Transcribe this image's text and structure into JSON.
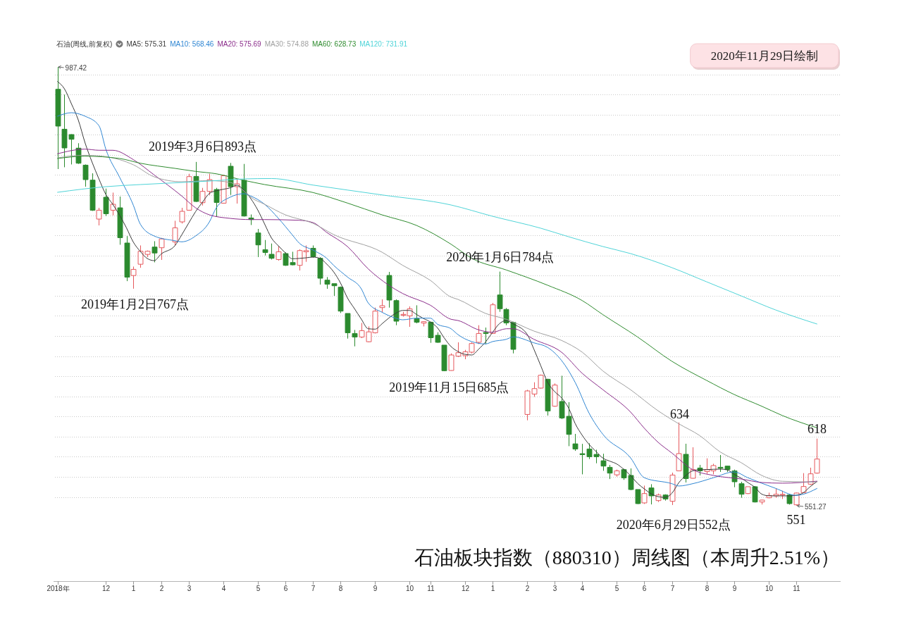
{
  "chart_data": {
    "type": "candlestick",
    "title": "石油板块指数（880310）周线图（本周升2.51%）",
    "legend_title": "石油(周线,前复权)",
    "legend": "top left",
    "grid": "y",
    "x": [
      "2018-10-19",
      "2018-10-26",
      "2018-11-02",
      "2018-11-09",
      "2018-11-16",
      "2018-11-23",
      "2018-11-30",
      "2018-12-07",
      "2018-12-14",
      "2018-12-21",
      "2018-12-28",
      "2019-01-04",
      "2019-01-11",
      "2019-01-18",
      "2019-01-25",
      "2019-02-01",
      "2019-02-15",
      "2019-02-22",
      "2019-03-01",
      "2019-03-08",
      "2019-03-15",
      "2019-03-22",
      "2019-03-29",
      "2019-04-05",
      "2019-04-12",
      "2019-04-19",
      "2019-04-26",
      "2019-05-03",
      "2019-05-10",
      "2019-05-17",
      "2019-05-24",
      "2019-05-31",
      "2019-06-07",
      "2019-06-14",
      "2019-06-21",
      "2019-06-28",
      "2019-07-05",
      "2019-07-12",
      "2019-07-19",
      "2019-07-26",
      "2019-08-02",
      "2019-08-09",
      "2019-08-16",
      "2019-08-23",
      "2019-08-30",
      "2019-09-06",
      "2019-09-13",
      "2019-09-20",
      "2019-09-27",
      "2019-10-04",
      "2019-10-11",
      "2019-10-18",
      "2019-10-25",
      "2019-11-01",
      "2019-11-08",
      "2019-11-15",
      "2019-11-22",
      "2019-11-29",
      "2019-12-06",
      "2019-12-13",
      "2019-12-20",
      "2019-12-27",
      "2020-01-03",
      "2020-01-10",
      "2020-01-17",
      "2020-01-24",
      "2020-02-07",
      "2020-02-14",
      "2020-02-21",
      "2020-02-28",
      "2020-03-06",
      "2020-03-13",
      "2020-03-20",
      "2020-03-27",
      "2020-04-03",
      "2020-04-10",
      "2020-04-17",
      "2020-04-24",
      "2020-05-01",
      "2020-05-08",
      "2020-05-15",
      "2020-05-22",
      "2020-05-29",
      "2020-06-05",
      "2020-06-12",
      "2020-06-19",
      "2020-06-26",
      "2020-07-03",
      "2020-07-10",
      "2020-07-17",
      "2020-07-24",
      "2020-07-31",
      "2020-08-07",
      "2020-08-14",
      "2020-08-21",
      "2020-08-28",
      "2020-09-04",
      "2020-09-11",
      "2020-09-18",
      "2020-09-25",
      "2020-10-02",
      "2020-10-09",
      "2020-10-16",
      "2020-10-23",
      "2020-10-30",
      "2020-11-06",
      "2020-11-13",
      "2020-11-20",
      "2020-11-27"
    ],
    "xlim": [
      "2018-10-15",
      "2020-12-21"
    ],
    "xticks": [
      {
        "value": "2018-10-19",
        "label": "2018年"
      },
      {
        "value": "2018-12-07",
        "label": "12"
      },
      {
        "value": "2019-01-04",
        "label": "1"
      },
      {
        "value": "2019-02-01",
        "label": "2"
      },
      {
        "value": "2019-03-01",
        "label": "3"
      },
      {
        "value": "2019-04-05",
        "label": "4"
      },
      {
        "value": "2019-05-10",
        "label": "5"
      },
      {
        "value": "2019-06-07",
        "label": "6"
      },
      {
        "value": "2019-07-05",
        "label": "7"
      },
      {
        "value": "2019-08-02",
        "label": "8"
      },
      {
        "value": "2019-09-06",
        "label": "9"
      },
      {
        "value": "2019-10-11",
        "label": "10"
      },
      {
        "value": "2019-11-01",
        "label": "11"
      },
      {
        "value": "2019-12-06",
        "label": "12"
      },
      {
        "value": "2020-01-03",
        "label": "1"
      },
      {
        "value": "2020-02-07",
        "label": "2"
      },
      {
        "value": "2020-03-06",
        "label": "3"
      },
      {
        "value": "2020-04-03",
        "label": "4"
      },
      {
        "value": "2020-05-08",
        "label": "5"
      },
      {
        "value": "2020-06-05",
        "label": "6"
      },
      {
        "value": "2020-07-03",
        "label": "7"
      },
      {
        "value": "2020-08-07",
        "label": "8"
      },
      {
        "value": "2020-09-04",
        "label": "9"
      },
      {
        "value": "2020-10-09",
        "label": "10"
      },
      {
        "value": "2020-11-06",
        "label": "11"
      }
    ],
    "ohlc": [
      [
        965.2,
        987.42,
        885.9,
        928.6
      ],
      [
        925.5,
        959.9,
        887.7,
        906.9
      ],
      [
        920.2,
        920.5,
        890.5,
        915.5
      ],
      [
        906.7,
        911.6,
        891.0,
        891.7
      ],
      [
        889.8,
        890.5,
        868.4,
        875.4
      ],
      [
        874.9,
        881.7,
        844.3,
        845.0
      ],
      [
        836.2,
        847.4,
        829.9,
        845.0
      ],
      [
        857.9,
        866.5,
        839.2,
        841.5
      ],
      [
        845.0,
        862.5,
        839.9,
        850.9
      ],
      [
        847.4,
        858.6,
        810.7,
        817.7
      ],
      [
        812.4,
        819.3,
        774.5,
        778.5
      ],
      [
        780.1,
        789.0,
        767,
        786.2
      ],
      [
        791.3,
        810.0,
        787.8,
        804.2
      ],
      [
        801.1,
        805.0,
        798.4,
        804.2
      ],
      [
        808.4,
        814.2,
        793.2,
        802.5
      ],
      [
        807.7,
        817.5,
        795.6,
        816.5
      ],
      [
        813.5,
        834.5,
        810.0,
        827.5
      ],
      [
        833.4,
        847.4,
        831.8,
        843.9
      ],
      [
        845.0,
        881.2,
        844.6,
        878.4
      ],
      [
        878.6,
        893,
        853.2,
        853.7
      ],
      [
        852.5,
        867.2,
        849.7,
        863.7
      ],
      [
        863.7,
        881.2,
        860.2,
        875.4
      ],
      [
        865.6,
        867.2,
        838.5,
        852.7
      ],
      [
        852.0,
        880.0,
        851.6,
        879.3
      ],
      [
        888.7,
        892,
        860.2,
        868.4
      ],
      [
        868.4,
        875.4,
        851.6,
        871.2
      ],
      [
        874.7,
        891,
        838.7,
        839.2
      ],
      [
        837.3,
        840.8,
        830.3,
        835.7
      ],
      [
        822.4,
        826.4,
        798.4,
        810.5
      ],
      [
        805.8,
        815.4,
        800.0,
        803.0
      ],
      [
        801.2,
        811.9,
        796.0,
        797.2
      ],
      [
        796.0,
        809.3,
        794.9,
        803.7
      ],
      [
        801.9,
        803.1,
        789.7,
        790.2
      ],
      [
        793.0,
        803.7,
        790.2,
        790.7
      ],
      [
        790.2,
        806.1,
        785.1,
        804.9
      ],
      [
        803.7,
        810.0,
        793.7,
        804.8
      ],
      [
        807.2,
        810.0,
        797.9,
        798.8
      ],
      [
        797.2,
        798.4,
        771.1,
        777.4
      ],
      [
        775.5,
        778.6,
        766.9,
        771.5
      ],
      [
        772.0,
        772.0,
        759.9,
        769.9
      ],
      [
        768.5,
        769.2,
        742.8,
        744.7
      ],
      [
        742.4,
        742.4,
        717.4,
        723.2
      ],
      [
        722.5,
        726.0,
        709.7,
        719.0
      ],
      [
        719.0,
        733.0,
        717.9,
        725.3
      ],
      [
        714.3,
        729.5,
        713.7,
        724.1
      ],
      [
        723.2,
        748.2,
        722.5,
        744.7
      ],
      [
        748.2,
        756.4,
        743.5,
        750.1
      ],
      [
        780.2,
        783.7,
        748.2,
        755.7
      ],
      [
        755.2,
        756.4,
        730.7,
        734.7
      ],
      [
        740.5,
        744.0,
        739.3,
        741.5
      ],
      [
        740.0,
        749.4,
        729.1,
        747.0
      ],
      [
        737.2,
        750.5,
        732.6,
        733.7
      ],
      [
        732.8,
        734.7,
        729.5,
        734.2
      ],
      [
        733.7,
        734.2,
        713.2,
        718.3
      ],
      [
        720.7,
        723.7,
        713.2,
        713.7
      ],
      [
        710.9,
        710.9,
        685,
        685.5
      ],
      [
        685.7,
        702.7,
        685.5,
        701.1
      ],
      [
        699.9,
        713.7,
        699.2,
        703.4
      ],
      [
        700.4,
        706.2,
        696.9,
        704.3
      ],
      [
        703.9,
        713.7,
        702.7,
        712.5
      ],
      [
        713.7,
        730.7,
        712.0,
        722.5
      ],
      [
        723.5,
        728.4,
        712.0,
        722.5
      ],
      [
        722.5,
        752.9,
        722.1,
        751.0
      ],
      [
        760.8,
        784,
        744.0,
        747.1
      ],
      [
        746.4,
        747.8,
        730.7,
        733.0
      ],
      [
        733.5,
        734.2,
        702.7,
        706.7
      ],
      [
        642.0,
        666.5,
        636.2,
        665.4
      ],
      [
        662.3,
        674.0,
        659.5,
        667.7
      ],
      [
        668.2,
        681.7,
        667.7,
        681.0
      ],
      [
        677.0,
        677.5,
        640.9,
        645.5
      ],
      [
        650.2,
        672.8,
        649.7,
        671.2
      ],
      [
        654.9,
        680.5,
        637.4,
        638.5
      ],
      [
        640.2,
        654.2,
        610.5,
        622.2
      ],
      [
        612.8,
        622.7,
        605.8,
        607.7
      ],
      [
        603.0,
        612.8,
        582.5,
        602.1
      ],
      [
        607.7,
        613.3,
        597.7,
        600.0
      ],
      [
        602.3,
        607.0,
        593.5,
        600.0
      ],
      [
        596.0,
        603.0,
        586.0,
        590.7
      ],
      [
        589.5,
        591.8,
        577.8,
        583.7
      ],
      [
        582.0,
        587.2,
        580.2,
        586.0
      ],
      [
        587.2,
        588.0,
        577.0,
        579.0
      ],
      [
        581.4,
        588.4,
        566.7,
        567.4
      ],
      [
        567.4,
        567.4,
        552.9,
        553.4
      ],
      [
        554.1,
        571.3,
        553.1,
        563.4
      ],
      [
        569.0,
        572.7,
        552.6,
        561.1
      ],
      [
        556.4,
        563.4,
        555.0,
        562.0
      ],
      [
        562.0,
        562.7,
        556.4,
        558.0
      ],
      [
        555.7,
        584.2,
        552,
        581.8
      ],
      [
        586.0,
        634,
        585.6,
        603.1
      ],
      [
        602.4,
        612.9,
        574.4,
        578.3
      ],
      [
        578.6,
        609.4,
        578.3,
        587.2
      ],
      [
        588.8,
        591.9,
        581.4,
        586.0
      ],
      [
        585.3,
        598.4,
        583.0,
        587.2
      ],
      [
        586.0,
        593.0,
        582.5,
        591.2
      ],
      [
        589.5,
        601.7,
        584.9,
        588.6
      ],
      [
        590.7,
        590.9,
        584.9,
        587.2
      ],
      [
        586.0,
        587.2,
        569.7,
        575.1
      ],
      [
        573.2,
        575.1,
        559.2,
        562.7
      ],
      [
        563.4,
        570.2,
        562.9,
        570.2
      ],
      [
        570.2,
        570.9,
        554.5,
        555.0
      ],
      [
        555.0,
        557.3,
        552.5,
        556.9
      ],
      [
        559.2,
        564.3,
        558.7,
        561.5
      ],
      [
        561.1,
        568.5,
        559.2,
        562.7
      ],
      [
        562.0,
        566.2,
        558.0,
        562.6
      ],
      [
        562.0,
        562.7,
        552.4,
        553.4
      ],
      [
        552.2,
        564.3,
        551.27,
        563.9
      ],
      [
        564.3,
        583.7,
        563.9,
        570.4
      ],
      [
        572.7,
        589.1,
        572.0,
        583.0
      ],
      [
        583.7,
        618,
        583.2,
        597.7
      ]
    ],
    "colors": [
      "#2b8a2e",
      "#2b8a2e",
      "#2b8a2e",
      "#2b8a2e",
      "#2b8a2e",
      "#2b8a2e",
      "#e5585c",
      "#2b8a2e",
      "#e5585c",
      "#2b8a2e",
      "#2b8a2e",
      "#e5585c",
      "#e5585c",
      "#e5585c",
      "#2b8a2e",
      "#e5585c",
      "#e5585c",
      "#e5585c",
      "#e5585c",
      "#2b8a2e",
      "#e5585c",
      "#e5585c",
      "#2b8a2e",
      "#e5585c",
      "#2b8a2e",
      "#e5585c",
      "#2b8a2e",
      "#2b8a2e",
      "#2b8a2e",
      "#2b8a2e",
      "#2b8a2e",
      "#e5585c",
      "#2b8a2e",
      "#2b8a2e",
      "#e5585c",
      "#e5585c",
      "#2b8a2e",
      "#2b8a2e",
      "#2b8a2e",
      "#2b8a2e",
      "#2b8a2e",
      "#2b8a2e",
      "#2b8a2e",
      "#e5585c",
      "#e5585c",
      "#e5585c",
      "#e5585c",
      "#2b8a2e",
      "#2b8a2e",
      "#e5585c",
      "#e5585c",
      "#2b8a2e",
      "#e5585c",
      "#2b8a2e",
      "#2b8a2e",
      "#2b8a2e",
      "#e5585c",
      "#e5585c",
      "#e5585c",
      "#e5585c",
      "#e5585c",
      "#2b8a2e",
      "#e5585c",
      "#2b8a2e",
      "#2b8a2e",
      "#2b8a2e",
      "#e5585c",
      "#e5585c",
      "#e5585c",
      "#2b8a2e",
      "#e5585c",
      "#2b8a2e",
      "#2b8a2e",
      "#2b8a2e",
      "#2b8a2e",
      "#2b8a2e",
      "#2b8a2e",
      "#2b8a2e",
      "#2b8a2e",
      "#e5585c",
      "#2b8a2e",
      "#2b8a2e",
      "#2b8a2e",
      "#e5585c",
      "#2b8a2e",
      "#e5585c",
      "#2b8a2e",
      "#e5585c",
      "#e5585c",
      "#2b8a2e",
      "#e5585c",
      "#2b8a2e",
      "#e5585c",
      "#e5585c",
      "#2b8a2e",
      "#2b8a2e",
      "#2b8a2e",
      "#2b8a2e",
      "#e5585c",
      "#2b8a2e",
      "#e5585c",
      "#e5585c",
      "#e5585c",
      "#e5585c",
      "#2b8a2e",
      "#e5585c",
      "#e5585c",
      "#e5585c",
      "#e5585c"
    ],
    "series": [
      {
        "name": "MA5: 575.31",
        "type": "line",
        "color": "#3a3a3a",
        "values": [
          972.9,
          965.7,
          951.0,
          934.9,
          911.8,
          892.9,
          876.1,
          860.7,
          850.9,
          840.0,
          827.3,
          813.1,
          804.0,
          797.0,
          794.9,
          801.4,
          809.7,
          820.6,
          832.2,
          843.6,
          853.0,
          861.7,
          864.3,
          865.8,
          867.2,
          869.8,
          864.9,
          856.5,
          845.3,
          831.3,
          817.3,
          809.6,
          802.6,
          796.8,
          797.1,
          797.7,
          798.4,
          797.2,
          791.4,
          783.7,
          772.5,
          757.8,
          747.3,
          736.8,
          727.2,
          726.8,
          732.1,
          737.9,
          742.6,
          745.4,
          745.4,
          741.4,
          737.4,
          734.0,
          728.4,
          718.2,
          709.5,
          704.6,
          701.8,
          701.1,
          706.9,
          714.1,
          723.5,
          732.2,
          735.3,
          732.0,
          721.9,
          706.9,
          690.4,
          673.8,
          664.8,
          658.6,
          648.8,
          632.7,
          621.3,
          612.2,
          605.2,
          598.6,
          595.6,
          592.8,
          587.6,
          581.3,
          573.6,
          568.0,
          563.1,
          560.3,
          559.6,
          563.8,
          574.3,
          581.3,
          586.0,
          587.0,
          587.2,
          587.5,
          587.7,
          587.0,
          582.5,
          578.8,
          574.3,
          569.7,
          562.8,
          561.2,
          561.1,
          561.1,
          561.1,
          561.7,
          564.1,
          570.1,
          575.31
        ]
      },
      {
        "name": "MA10: 568.46",
        "type": "line",
        "color": "#2f86d3",
        "x": [
          "2018-10-19",
          "2018-11-02",
          "2018-11-16",
          "2018-11-30",
          "2018-12-07",
          "2018-12-21",
          "2019-01-04",
          "2019-01-11",
          "2019-01-25",
          "2019-02-15",
          "2019-02-22",
          "2019-03-08",
          "2019-03-22",
          "2019-03-29",
          "2019-04-12",
          "2019-04-26",
          "2019-05-03",
          "2019-05-17",
          "2019-05-31",
          "2019-06-14",
          "2019-06-21",
          "2019-07-05",
          "2019-07-19",
          "2019-07-26",
          "2019-08-09",
          "2019-08-23",
          "2019-08-30",
          "2019-09-13",
          "2019-09-27",
          "2019-10-04",
          "2019-10-18",
          "2019-11-01",
          "2019-11-08",
          "2019-11-22",
          "2019-11-29",
          "2019-12-13",
          "2019-12-27",
          "2020-01-03",
          "2020-01-17",
          "2020-01-24",
          "2020-02-14",
          "2020-02-28",
          "2020-03-13",
          "2020-03-27",
          "2020-04-10",
          "2020-04-24",
          "2020-05-22",
          "2020-06-05",
          "2020-07-03",
          "2020-07-10",
          "2020-07-24",
          "2020-08-14",
          "2020-09-04",
          "2020-09-18",
          "2020-10-16",
          "2020-11-06",
          "2020-11-13",
          "2020-11-27"
        ],
        "values": [
          938.4,
          941.9,
          938.4,
          929.1,
          905.7,
          877.7,
          849.7,
          831.1,
          819.4,
          814.7,
          813.6,
          819.4,
          833.4,
          847.4,
          857.9,
          861.4,
          859.1,
          850.9,
          836.9,
          820.6,
          812.4,
          805.4,
          797.2,
          790.2,
          778.6,
          766.9,
          752.9,
          743.6,
          737.7,
          736.1,
          737.7,
          737.7,
          731.9,
          727.2,
          721.4,
          714.4,
          712.1,
          714.4,
          716.7,
          719.1,
          713.2,
          708.6,
          695.7,
          673.6,
          643.2,
          622.2,
          598.9,
          579.1,
          573.2,
          570.9,
          573.2,
          579.1,
          584.9,
          579.1,
          568.6,
          561.6,
          562.7,
          568.46
        ]
      },
      {
        "name": "MA20: 575.69",
        "type": "line",
        "color": "#8b2d8b",
        "x": [
          "2018-10-19",
          "2018-11-16",
          "2018-11-30",
          "2018-12-14",
          "2019-01-04",
          "2019-01-25",
          "2019-02-22",
          "2019-03-08",
          "2019-03-22",
          "2019-04-12",
          "2019-05-03",
          "2019-05-17",
          "2019-06-21",
          "2019-07-05",
          "2019-07-19",
          "2019-08-09",
          "2019-08-30",
          "2019-09-20",
          "2019-10-04",
          "2019-11-01",
          "2019-11-22",
          "2019-11-29",
          "2019-12-20",
          "2020-01-03",
          "2020-01-17",
          "2020-01-24",
          "2020-02-14",
          "2020-03-13",
          "2020-04-03",
          "2020-04-24",
          "2020-05-22",
          "2020-06-05",
          "2020-06-19",
          "2020-07-03",
          "2020-07-24",
          "2020-08-14",
          "2020-09-11",
          "2020-10-02",
          "2020-10-23",
          "2020-11-27"
        ],
        "values": [
          901.1,
          905.7,
          904.6,
          904.6,
          895.2,
          880.1,
          859.1,
          847.4,
          840.4,
          836.9,
          835.7,
          835.7,
          835.0,
          832.7,
          822.9,
          808.9,
          786.7,
          770.4,
          762.2,
          750.6,
          736.6,
          735.4,
          726.1,
          723.7,
          727.2,
          727.2,
          716.7,
          703.9,
          682.9,
          666.6,
          644.4,
          628.3,
          614.3,
          603.6,
          587.2,
          581.4,
          577.9,
          574.4,
          573.7,
          575.69
        ]
      },
      {
        "name": "MA30: 574.88",
        "type": "line",
        "color": "#a0a0a0",
        "x": [
          "2018-10-19",
          "2018-11-16",
          "2018-12-07",
          "2019-01-04",
          "2019-01-25",
          "2019-02-22",
          "2019-03-22",
          "2019-04-12",
          "2019-04-26",
          "2019-05-03",
          "2019-05-17",
          "2019-06-07",
          "2019-07-05",
          "2019-07-26",
          "2019-09-13",
          "2019-10-04",
          "2019-11-01",
          "2019-11-22",
          "2019-11-29",
          "2019-12-27",
          "2020-01-17",
          "2020-02-14",
          "2020-03-13",
          "2020-04-03",
          "2020-04-24",
          "2020-05-22",
          "2020-06-19",
          "2020-07-10",
          "2020-07-31",
          "2020-08-21",
          "2020-09-11",
          "2020-10-02",
          "2020-10-23",
          "2020-11-27"
        ],
        "values": [
          897.1,
          899.6,
          898.2,
          890.1,
          878.2,
          873.3,
          874.4,
          872.6,
          864.2,
          857.9,
          850.9,
          840.4,
          832.0,
          820.8,
          803.3,
          790.2,
          775.3,
          758.7,
          756.4,
          742.4,
          736.6,
          724.9,
          715.6,
          703.9,
          685.2,
          666.6,
          645.6,
          632.7,
          621.1,
          604.7,
          594.2,
          581.4,
          575.6,
          574.88
        ]
      },
      {
        "name": "MA60: 628.73",
        "type": "line",
        "color": "#2e8b2e",
        "x": [
          "2018-10-19",
          "2018-11-16",
          "2018-12-21",
          "2019-01-11",
          "2019-02-15",
          "2019-03-08",
          "2019-03-29",
          "2019-04-26",
          "2019-05-17",
          "2019-07-05",
          "2019-08-09",
          "2019-09-13",
          "2019-10-18",
          "2019-11-22",
          "2019-12-13",
          "2020-01-17",
          "2020-02-28",
          "2020-04-03",
          "2020-04-24",
          "2020-05-29",
          "2020-07-03",
          "2020-08-07",
          "2020-09-04",
          "2020-10-02",
          "2020-10-23",
          "2020-11-27"
        ],
        "values": [
          896.4,
          898.7,
          896.4,
          891.7,
          886.6,
          883.6,
          881.2,
          874.7,
          870.5,
          862.6,
          852.1,
          840.4,
          829.9,
          811.2,
          797.2,
          785.6,
          770.4,
          755.2,
          741.2,
          719.1,
          694.8,
          675.9,
          661.9,
          650.2,
          640.9,
          628.73
        ]
      },
      {
        "name": "MA120: 731.91",
        "type": "line",
        "color": "#4fd4d8",
        "x": [
          "2018-10-19",
          "2018-12-07",
          "2019-01-11",
          "2019-03-01",
          "2019-03-29",
          "2019-04-26",
          "2019-05-24",
          "2019-07-05",
          "2019-09-13",
          "2019-11-22",
          "2020-01-03",
          "2020-02-21",
          "2020-03-20",
          "2020-04-24",
          "2020-05-22",
          "2020-07-03",
          "2020-08-07",
          "2020-09-11",
          "2020-10-16",
          "2020-11-27"
        ],
        "values": [
          862.8,
          868.4,
          870.5,
          872.9,
          874.4,
          876.1,
          876.5,
          870.0,
          860.2,
          850.2,
          839.0,
          827.1,
          818.7,
          808.9,
          801.9,
          787.9,
          773.9,
          759.9,
          745.9,
          731.91
        ]
      }
    ],
    "annotations": [
      {
        "text": "987.42",
        "x": "2018-10-19",
        "y": 987.42
      },
      {
        "text": "2019年3月6日893点",
        "x": "2019-03-08",
        "y": 893
      },
      {
        "text": "2019年1月2日767点",
        "x": "2019-01-04",
        "y": 767
      },
      {
        "text": "2020年1月6日784点",
        "x": "2020-01-10",
        "y": 784
      },
      {
        "text": "2019年11月15日685点",
        "x": "2019-11-15",
        "y": 685
      },
      {
        "text": "2020年6月29日552点",
        "x": "2020-07-03",
        "y": 552
      },
      {
        "text": "634",
        "x": "2020-07-10",
        "y": 634
      },
      {
        "text": "618",
        "x": "2020-11-27",
        "y": 618
      },
      {
        "text": "551",
        "x": "2020-11-06",
        "y": 551
      },
      {
        "text": "551.27",
        "x": "2020-11-06",
        "y": 551.27
      },
      "2020年11月29日绘制"
    ]
  }
}
